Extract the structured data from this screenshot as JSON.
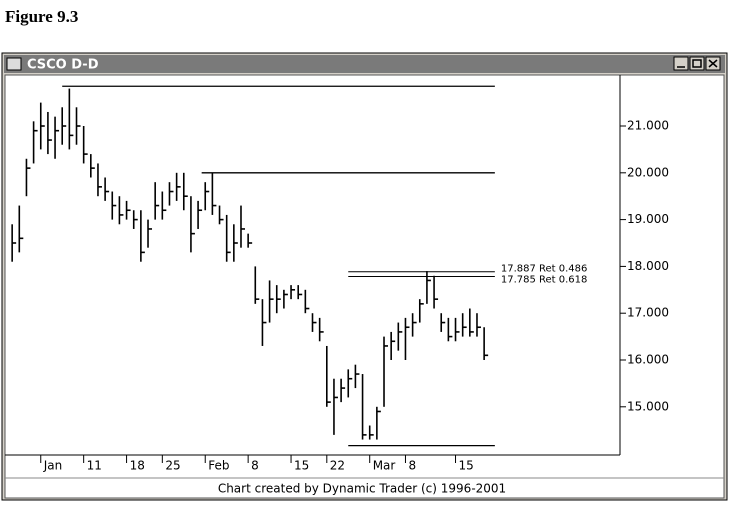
{
  "figure_label": "Figure 9.3",
  "window_title": "CSCO D-D",
  "footer": "Chart created by Dynamic Trader (c) 1996-2001",
  "chart_data": {
    "type": "ohlc",
    "color": "#000000",
    "high": [
      18.9,
      19.3,
      20.3,
      21.1,
      21.5,
      21.3,
      21.2,
      21.4,
      21.8,
      21.4,
      21.0,
      20.4,
      20.2,
      19.9,
      19.6,
      19.5,
      19.4,
      19.2,
      19.2,
      19.0,
      19.8,
      19.6,
      19.8,
      20.0,
      20.0,
      19.5,
      19.4,
      19.8,
      20.0,
      19.3,
      19.1,
      18.9,
      19.3,
      18.7,
      18.0,
      17.3,
      17.7,
      17.6,
      17.5,
      17.6,
      17.6,
      17.5,
      17.0,
      16.9,
      16.3,
      15.6,
      15.6,
      15.8,
      15.9,
      15.7,
      14.6,
      15.0,
      16.5,
      16.6,
      16.8,
      16.9,
      17.0,
      17.3,
      17.9,
      17.8,
      17.0,
      16.9,
      16.9,
      17.0,
      17.1,
      17.0,
      16.7
    ],
    "low": [
      18.1,
      18.3,
      19.5,
      20.2,
      20.5,
      20.4,
      20.3,
      20.6,
      20.5,
      20.6,
      20.2,
      19.9,
      19.5,
      19.4,
      19.0,
      18.9,
      19.0,
      18.8,
      18.1,
      18.4,
      19.0,
      19.0,
      19.3,
      19.4,
      19.2,
      18.3,
      18.8,
      19.2,
      19.1,
      18.9,
      18.1,
      18.1,
      18.4,
      18.4,
      17.2,
      16.3,
      16.8,
      17.0,
      17.1,
      17.3,
      17.3,
      17.0,
      16.6,
      16.4,
      15.0,
      14.4,
      15.1,
      15.2,
      15.4,
      14.3,
      14.3,
      14.3,
      15.0,
      16.0,
      16.2,
      16.0,
      16.5,
      16.8,
      17.2,
      17.1,
      16.6,
      16.4,
      16.4,
      16.5,
      16.5,
      16.5,
      16.0
    ],
    "close": [
      18.5,
      18.6,
      20.1,
      20.9,
      21.0,
      20.7,
      20.9,
      21.0,
      20.8,
      21.0,
      20.4,
      20.1,
      19.7,
      19.6,
      19.3,
      19.1,
      19.2,
      19.0,
      18.3,
      18.8,
      19.3,
      19.2,
      19.6,
      19.7,
      19.5,
      18.7,
      19.2,
      19.6,
      19.3,
      19.0,
      18.3,
      18.5,
      18.8,
      18.5,
      17.3,
      16.8,
      17.3,
      17.3,
      17.4,
      17.5,
      17.4,
      17.1,
      16.8,
      16.6,
      15.1,
      15.2,
      15.4,
      15.6,
      15.7,
      14.4,
      14.4,
      14.9,
      16.3,
      16.4,
      16.6,
      16.7,
      16.8,
      17.2,
      17.7,
      17.3,
      16.8,
      16.5,
      16.6,
      16.7,
      16.6,
      16.7,
      16.1
    ],
    "xlim": [
      -1,
      85
    ],
    "xticks": [
      {
        "value": 4,
        "label": "Jan"
      },
      {
        "value": 10,
        "label": "11"
      },
      {
        "value": 16,
        "label": "18"
      },
      {
        "value": 21,
        "label": "25"
      },
      {
        "value": 27,
        "label": "Feb"
      },
      {
        "value": 33,
        "label": "8"
      },
      {
        "value": 39,
        "label": "15"
      },
      {
        "value": 44,
        "label": "22"
      },
      {
        "value": 50,
        "label": "Mar"
      },
      {
        "value": 55,
        "label": "8"
      },
      {
        "value": 62,
        "label": "15"
      }
    ],
    "ylim": [
      13.97,
      22.09
    ],
    "yticks": [
      {
        "value": 15,
        "label": "15.000"
      },
      {
        "value": 16,
        "label": "16.000"
      },
      {
        "value": 17,
        "label": "17.000"
      },
      {
        "value": 18,
        "label": "18.000"
      },
      {
        "value": 19,
        "label": "19.000"
      },
      {
        "value": 20,
        "label": "20.000"
      },
      {
        "value": 21,
        "label": "21.000"
      }
    ],
    "lines": [
      {
        "value": 21.85,
        "start": 7
      },
      {
        "value": 20.0,
        "start": 26.5
      },
      {
        "value": 14.17,
        "start": 47
      }
    ],
    "retracements": [
      {
        "value": 17.887,
        "label": "17.887 Ret 0.486",
        "start": 47
      },
      {
        "value": 17.785,
        "label": "17.785 Ret 0.618",
        "start": 47
      }
    ],
    "line_end": 67.5
  }
}
